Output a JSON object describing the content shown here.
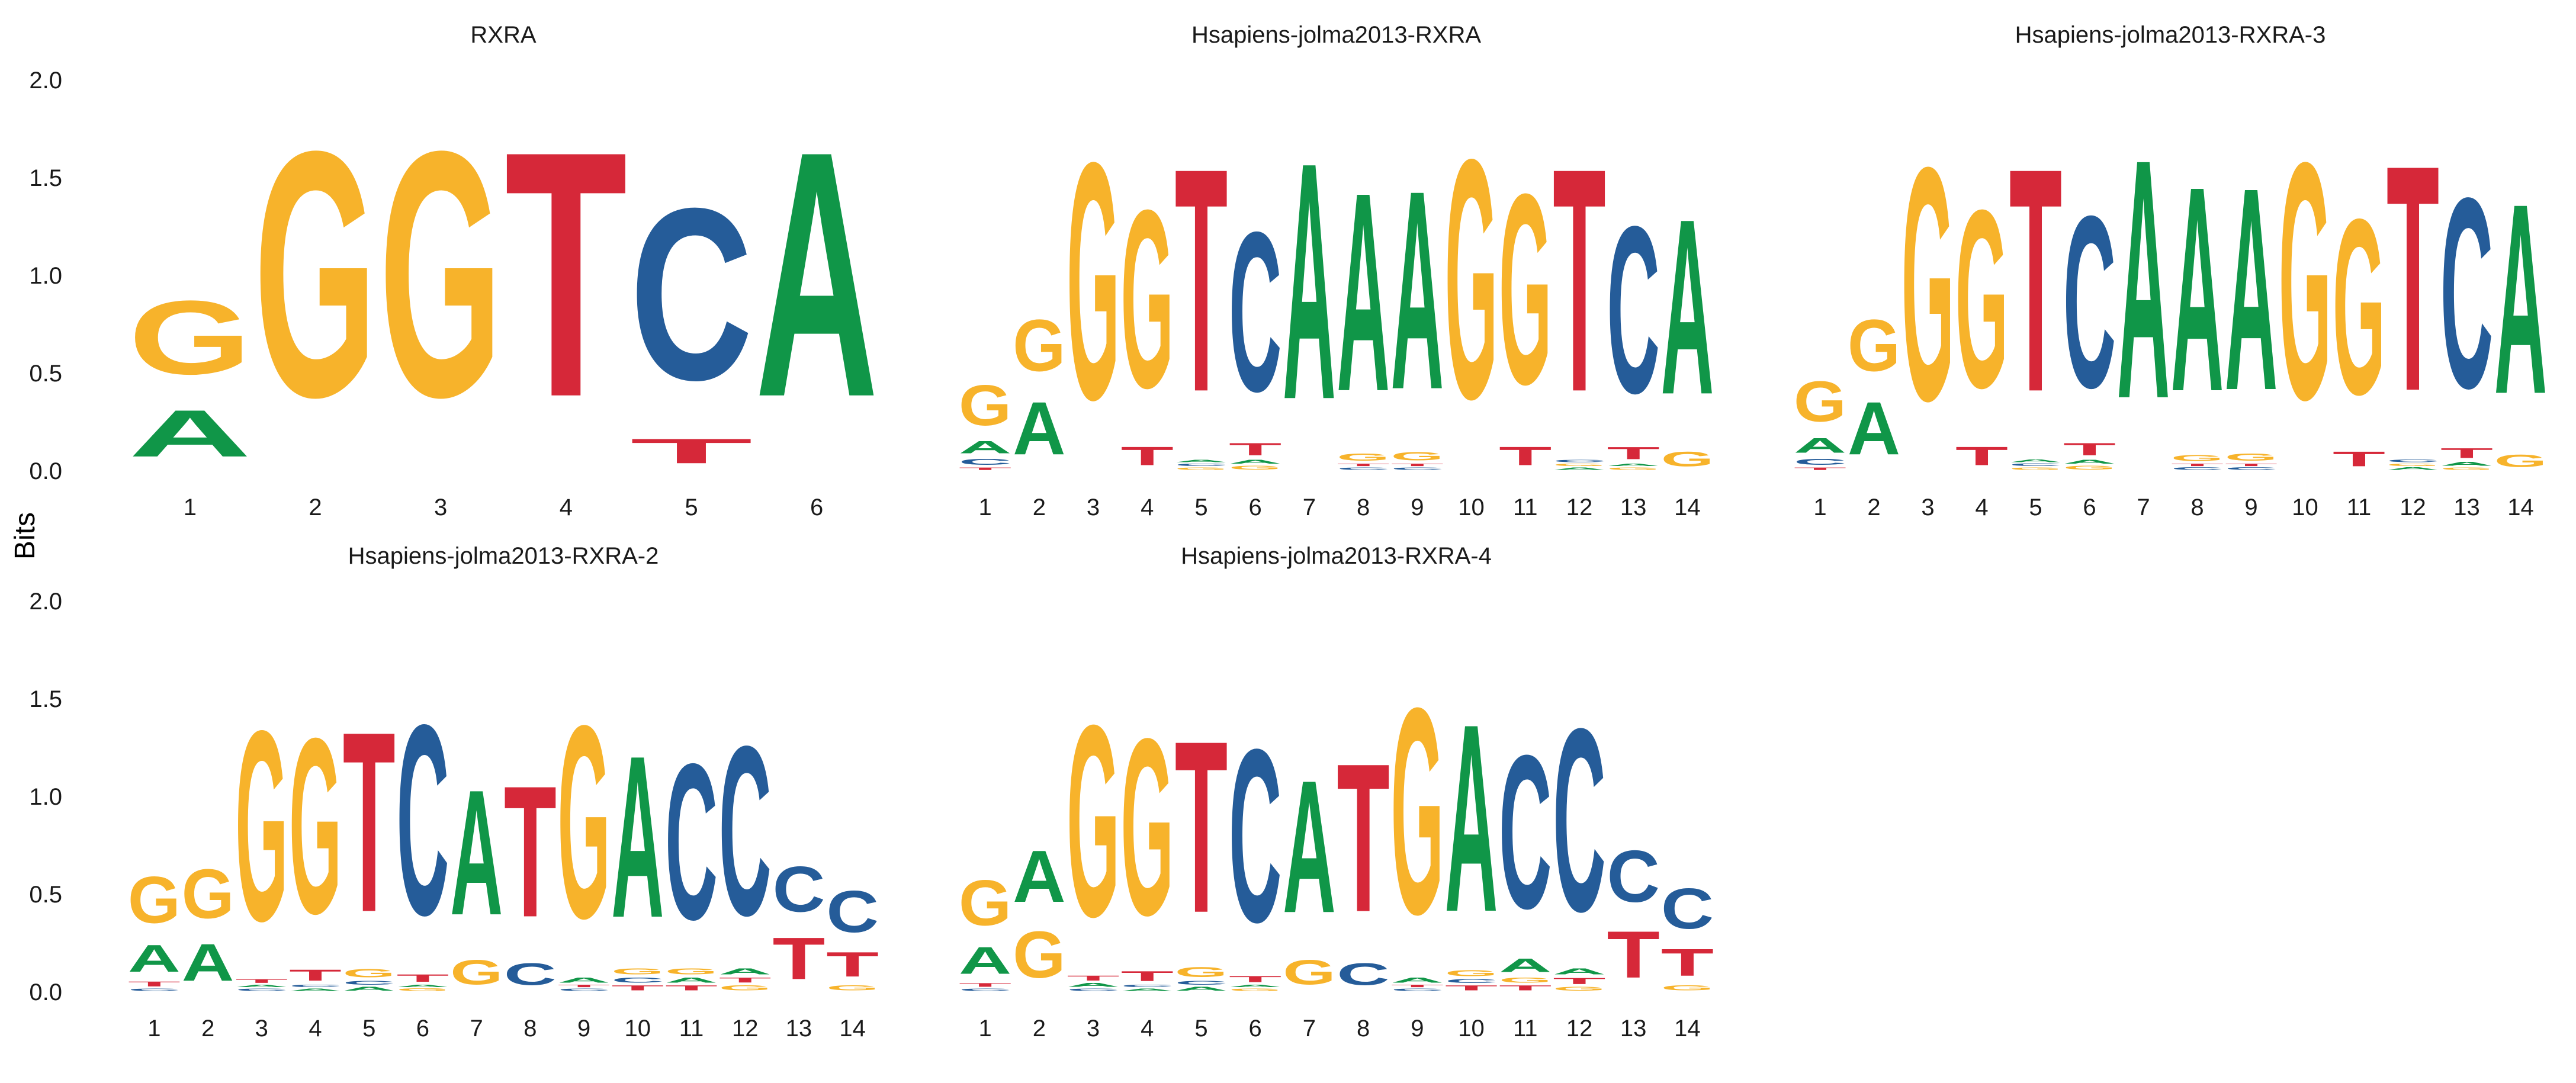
{
  "ylabel": "Bits",
  "yticks": [
    "0.0",
    "0.5",
    "1.0",
    "1.5",
    "2.0"
  ],
  "colors": {
    "A": "#109648",
    "C": "#255C99",
    "G": "#F7B32B",
    "T": "#D62839"
  },
  "chart_data": [
    {
      "type": "sequence-logo",
      "title": "RXRA",
      "ylim": [
        0,
        2
      ],
      "positions": [
        "1",
        "2",
        "3",
        "4",
        "5",
        "6"
      ],
      "columns": [
        [
          [
            "A",
            0.38
          ],
          [
            "G",
            0.6
          ]
        ],
        [
          [
            "G",
            2.0
          ]
        ],
        [
          [
            "G",
            2.0
          ]
        ],
        [
          [
            "T",
            2.0
          ]
        ],
        [
          [
            "T",
            0.2
          ],
          [
            "C",
            1.4
          ]
        ],
        [
          [
            "A",
            2.0
          ]
        ]
      ]
    },
    {
      "type": "sequence-logo",
      "title": "Hsapiens-jolma2013-RXRA",
      "ylim": [
        0,
        2
      ],
      "positions": [
        "1",
        "2",
        "3",
        "4",
        "5",
        "6",
        "7",
        "8",
        "9",
        "10",
        "11",
        "12",
        "13",
        "14"
      ],
      "columns": [
        [
          [
            "T",
            0.02
          ],
          [
            "C",
            0.05
          ],
          [
            "A",
            0.1
          ],
          [
            "G",
            0.33
          ]
        ],
        [
          [
            "A",
            0.43
          ],
          [
            "G",
            0.42
          ]
        ],
        [
          [
            "G",
            1.93
          ]
        ],
        [
          [
            "T",
            0.15
          ],
          [
            "G",
            1.45
          ]
        ],
        [
          [
            "G",
            0.02
          ],
          [
            "C",
            0.02
          ],
          [
            "A",
            0.02
          ],
          [
            "T",
            1.82
          ]
        ],
        [
          [
            "G",
            0.03
          ],
          [
            "A",
            0.03
          ],
          [
            "T",
            0.1
          ],
          [
            "C",
            1.3
          ]
        ],
        [
          [
            "A",
            1.93
          ]
        ],
        [
          [
            "C",
            0.02
          ],
          [
            "T",
            0.02
          ],
          [
            "G",
            0.06
          ],
          [
            "A",
            1.62
          ]
        ],
        [
          [
            "C",
            0.02
          ],
          [
            "T",
            0.02
          ],
          [
            "G",
            0.07
          ],
          [
            "A",
            1.62
          ]
        ],
        [
          [
            "G",
            1.95
          ]
        ],
        [
          [
            "T",
            0.15
          ],
          [
            "G",
            1.55
          ]
        ],
        [
          [
            "A",
            0.02
          ],
          [
            "G",
            0.02
          ],
          [
            "C",
            0.02
          ],
          [
            "T",
            1.82
          ]
        ],
        [
          [
            "G",
            0.02
          ],
          [
            "A",
            0.02
          ],
          [
            "T",
            0.1
          ],
          [
            "C",
            1.36
          ]
        ],
        [
          [
            "G",
            0.12
          ],
          [
            "A",
            1.43
          ]
        ]
      ]
    },
    {
      "type": "sequence-logo",
      "title": "Hsapiens-jolma2013-RXRA-3",
      "ylim": [
        0,
        2
      ],
      "positions": [
        "1",
        "2",
        "3",
        "4",
        "5",
        "6",
        "7",
        "8",
        "9",
        "10",
        "11",
        "12",
        "13",
        "14"
      ],
      "columns": [
        [
          [
            "T",
            0.02
          ],
          [
            "C",
            0.05
          ],
          [
            "A",
            0.12
          ],
          [
            "G",
            0.33
          ]
        ],
        [
          [
            "A",
            0.43
          ],
          [
            "G",
            0.42
          ]
        ],
        [
          [
            "G",
            1.9
          ]
        ],
        [
          [
            "T",
            0.15
          ],
          [
            "G",
            1.45
          ]
        ],
        [
          [
            "G",
            0.02
          ],
          [
            "C",
            0.02
          ],
          [
            "A",
            0.02
          ],
          [
            "T",
            1.82
          ]
        ],
        [
          [
            "G",
            0.03
          ],
          [
            "A",
            0.03
          ],
          [
            "T",
            0.1
          ],
          [
            "C",
            1.4
          ]
        ],
        [
          [
            "A",
            1.95
          ]
        ],
        [
          [
            "C",
            0.02
          ],
          [
            "T",
            0.02
          ],
          [
            "G",
            0.05
          ],
          [
            "A",
            1.67
          ]
        ],
        [
          [
            "C",
            0.02
          ],
          [
            "T",
            0.02
          ],
          [
            "G",
            0.06
          ],
          [
            "A",
            1.65
          ]
        ],
        [
          [
            "G",
            1.93
          ]
        ],
        [
          [
            "T",
            0.12
          ],
          [
            "G",
            1.43
          ]
        ],
        [
          [
            "A",
            0.02
          ],
          [
            "G",
            0.02
          ],
          [
            "C",
            0.02
          ],
          [
            "T",
            1.84
          ]
        ],
        [
          [
            "G",
            0.02
          ],
          [
            "A",
            0.03
          ],
          [
            "T",
            0.08
          ],
          [
            "C",
            1.55
          ]
        ],
        [
          [
            "G",
            0.1
          ],
          [
            "A",
            1.55
          ]
        ]
      ]
    },
    {
      "type": "sequence-logo",
      "title": "Hsapiens-jolma2013-RXRA-2",
      "ylim": [
        0,
        2
      ],
      "positions": [
        "1",
        "2",
        "3",
        "4",
        "5",
        "6",
        "7",
        "8",
        "9",
        "10",
        "11",
        "12",
        "13",
        "14"
      ],
      "columns": [
        [
          [
            "C",
            0.02
          ],
          [
            "T",
            0.04
          ],
          [
            "A",
            0.22
          ],
          [
            "G",
            0.38
          ]
        ],
        [
          [
            "A",
            0.3
          ],
          [
            "G",
            0.4
          ]
        ],
        [
          [
            "C",
            0.02
          ],
          [
            "A",
            0.02
          ],
          [
            "T",
            0.03
          ],
          [
            "G",
            1.55
          ]
        ],
        [
          [
            "A",
            0.02
          ],
          [
            "C",
            0.02
          ],
          [
            "T",
            0.09
          ],
          [
            "G",
            1.43
          ]
        ],
        [
          [
            "A",
            0.03
          ],
          [
            "C",
            0.03
          ],
          [
            "G",
            0.07
          ],
          [
            "T",
            1.47
          ]
        ],
        [
          [
            "G",
            0.02
          ],
          [
            "A",
            0.02
          ],
          [
            "T",
            0.06
          ],
          [
            "C",
            1.55
          ]
        ],
        [
          [
            "G",
            0.2
          ],
          [
            "A",
            1.02
          ]
        ],
        [
          [
            "C",
            0.18
          ],
          [
            "T",
            1.07
          ]
        ],
        [
          [
            "C",
            0.02
          ],
          [
            "T",
            0.02
          ],
          [
            "A",
            0.04
          ],
          [
            "G",
            1.57
          ]
        ],
        [
          [
            "T",
            0.04
          ],
          [
            "C",
            0.04
          ],
          [
            "G",
            0.05
          ],
          [
            "A",
            1.32
          ]
        ],
        [
          [
            "T",
            0.04
          ],
          [
            "A",
            0.04
          ],
          [
            "G",
            0.05
          ],
          [
            "C",
            1.27
          ]
        ],
        [
          [
            "G",
            0.04
          ],
          [
            "T",
            0.04
          ],
          [
            "A",
            0.05
          ],
          [
            "C",
            1.38
          ]
        ],
        [
          [
            "T",
            0.34
          ],
          [
            "C",
            0.37
          ]
        ],
        [
          [
            "G",
            0.04
          ],
          [
            "T",
            0.2
          ],
          [
            "C",
            0.34
          ]
        ]
      ]
    },
    {
      "type": "sequence-logo",
      "title": "Hsapiens-jolma2013-RXRA-4",
      "ylim": [
        0,
        2
      ],
      "positions": [
        "1",
        "2",
        "3",
        "4",
        "5",
        "6",
        "7",
        "8",
        "9",
        "10",
        "11",
        "12",
        "13",
        "14"
      ],
      "columns": [
        [
          [
            "C",
            0.02
          ],
          [
            "T",
            0.03
          ],
          [
            "A",
            0.22
          ],
          [
            "G",
            0.37
          ]
        ],
        [
          [
            "G",
            0.38
          ],
          [
            "A",
            0.42
          ]
        ],
        [
          [
            "C",
            0.02
          ],
          [
            "A",
            0.03
          ],
          [
            "T",
            0.04
          ],
          [
            "G",
            1.56
          ]
        ],
        [
          [
            "A",
            0.02
          ],
          [
            "C",
            0.02
          ],
          [
            "T",
            0.08
          ],
          [
            "G",
            1.44
          ]
        ],
        [
          [
            "A",
            0.03
          ],
          [
            "C",
            0.03
          ],
          [
            "G",
            0.08
          ],
          [
            "T",
            1.4
          ]
        ],
        [
          [
            "G",
            0.02
          ],
          [
            "A",
            0.02
          ],
          [
            "T",
            0.05
          ],
          [
            "C",
            1.41
          ]
        ],
        [
          [
            "G",
            0.2
          ],
          [
            "A",
            1.08
          ]
        ],
        [
          [
            "C",
            0.18
          ],
          [
            "T",
            1.21
          ]
        ],
        [
          [
            "C",
            0.02
          ],
          [
            "T",
            0.02
          ],
          [
            "A",
            0.04
          ],
          [
            "G",
            1.68
          ]
        ],
        [
          [
            "T",
            0.04
          ],
          [
            "C",
            0.03
          ],
          [
            "G",
            0.05
          ],
          [
            "A",
            1.53
          ]
        ],
        [
          [
            "T",
            0.04
          ],
          [
            "G",
            0.04
          ],
          [
            "A",
            0.11
          ],
          [
            "C",
            1.25
          ]
        ],
        [
          [
            "G",
            0.03
          ],
          [
            "T",
            0.05
          ],
          [
            "A",
            0.05
          ],
          [
            "C",
            1.49
          ]
        ],
        [
          [
            "T",
            0.38
          ],
          [
            "C",
            0.42
          ]
        ],
        [
          [
            "G",
            0.04
          ],
          [
            "T",
            0.22
          ],
          [
            "C",
            0.33
          ]
        ]
      ]
    }
  ]
}
